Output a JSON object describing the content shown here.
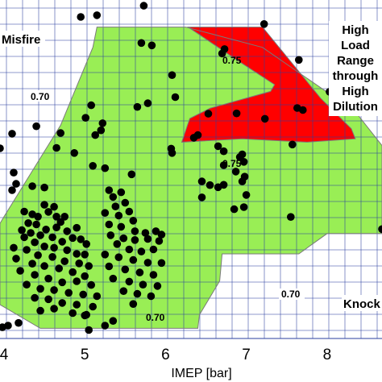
{
  "chart_data": {
    "type": "scatter",
    "xlabel": "IMEP [bar]",
    "ylabel": "",
    "xlim": [
      3.95,
      8.68
    ],
    "ylim": [
      0,
      1
    ],
    "x_ticks": [
      "4",
      "5",
      "6",
      "7",
      "8"
    ],
    "x_tick_values": [
      4,
      5,
      6,
      7,
      8
    ],
    "grid": true,
    "colors": {
      "grid": "#2b3f9f",
      "feasible_region": "#99ee55",
      "high_load_region": "#ff0000",
      "points": "#000000",
      "outline": "#7a7a7a"
    },
    "regions": {
      "feasible": {
        "name": "",
        "boundary": [
          [
            4.0,
            0.36
          ],
          [
            4.7,
            0.63
          ],
          [
            5.1,
            0.86
          ],
          [
            5.15,
            0.92
          ],
          [
            6.25,
            0.92
          ],
          [
            7.2,
            0.86
          ],
          [
            8.35,
            0.67
          ],
          [
            8.68,
            0.57
          ],
          [
            8.68,
            0.31
          ],
          [
            8.0,
            0.31
          ],
          [
            7.65,
            0.25
          ],
          [
            6.7,
            0.25
          ],
          [
            6.67,
            0.17
          ],
          [
            6.42,
            0.07
          ],
          [
            6.4,
            0.03
          ],
          [
            4.45,
            0.03
          ],
          [
            3.95,
            0.1
          ],
          [
            3.95,
            0.34
          ]
        ]
      },
      "high_load_dilution": {
        "name": "High Load Range through High Dilution",
        "boundary": [
          [
            6.28,
            0.92
          ],
          [
            7.2,
            0.92
          ],
          [
            7.92,
            0.71
          ],
          [
            8.3,
            0.62
          ],
          [
            8.35,
            0.59
          ],
          [
            7.75,
            0.58
          ],
          [
            6.95,
            0.59
          ],
          [
            6.2,
            0.58
          ],
          [
            6.3,
            0.65
          ],
          [
            6.55,
            0.68
          ],
          [
            7.3,
            0.73
          ],
          [
            7.35,
            0.75
          ],
          [
            6.9,
            0.82
          ]
        ]
      }
    },
    "region_labels": {
      "misfire": "Misfire",
      "high_load": [
        "High",
        "Load",
        "Range",
        "through",
        "High",
        "Dilution"
      ],
      "knock": "Knock"
    },
    "contours": [
      {
        "label": "0.70",
        "x": 4.43,
        "y": 0.728
      },
      {
        "label": "0.75",
        "x": 6.85,
        "y": 0.842
      },
      {
        "label": "0.75",
        "x": 6.85,
        "y": 0.564
      },
      {
        "label": "0.70",
        "x": 7.65,
        "y": 0.225
      },
      {
        "label": "0.70",
        "x": 5.9,
        "y": 0.082
      }
    ],
    "series": [
      {
        "points": [
          [
            5.15,
            0.955
          ],
          [
            5.73,
            0.983
          ],
          [
            7.22,
            0.929
          ],
          [
            4.95,
            0.95
          ],
          [
            5.7,
            0.873
          ],
          [
            5.83,
            0.866
          ],
          [
            6.7,
            0.842
          ],
          [
            6.73,
            0.855
          ],
          [
            7.65,
            0.823
          ],
          [
            6.08,
            0.778
          ],
          [
            5.08,
            0.689
          ],
          [
            6.12,
            0.713
          ],
          [
            5.78,
            0.695
          ],
          [
            5.65,
            0.684
          ],
          [
            8.03,
            0.729
          ],
          [
            7.63,
            0.681
          ],
          [
            7.7,
            0.675
          ],
          [
            6.88,
            0.665
          ],
          [
            7.23,
            0.649
          ],
          [
            6.53,
            0.664
          ],
          [
            6.35,
            0.593
          ],
          [
            6.4,
            0.601
          ],
          [
            7.57,
            0.573
          ],
          [
            4.4,
            0.627
          ],
          [
            5.01,
            0.652
          ],
          [
            5.22,
            0.636
          ],
          [
            5.2,
            0.615
          ],
          [
            5.13,
            0.601
          ],
          [
            3.95,
            0.562
          ],
          [
            4.1,
            0.605
          ],
          [
            4.7,
            0.607
          ],
          [
            4.87,
            0.548
          ],
          [
            4.65,
            0.563
          ],
          [
            5.1,
            0.51
          ],
          [
            5.25,
            0.503
          ],
          [
            5.58,
            0.485
          ],
          [
            6.08,
            0.548
          ],
          [
            6.07,
            0.561
          ],
          [
            6.65,
            0.568
          ],
          [
            6.72,
            0.553
          ],
          [
            6.95,
            0.544
          ],
          [
            6.92,
            0.536
          ],
          [
            6.97,
            0.522
          ],
          [
            6.72,
            0.512
          ],
          [
            6.87,
            0.493
          ],
          [
            6.72,
            0.454
          ],
          [
            6.65,
            0.447
          ],
          [
            6.98,
            0.478
          ],
          [
            6.95,
            0.464
          ],
          [
            6.45,
            0.464
          ],
          [
            6.55,
            0.453
          ],
          [
            6.45,
            0.417
          ],
          [
            7.0,
            0.424
          ],
          [
            6.85,
            0.382
          ],
          [
            6.97,
            0.388
          ],
          [
            7.55,
            0.359
          ],
          [
            8.68,
            0.323
          ],
          [
            4.12,
            0.49
          ],
          [
            4.15,
            0.457
          ],
          [
            4.1,
            0.438
          ],
          [
            4.35,
            0.45
          ],
          [
            4.5,
            0.446
          ],
          [
            4.55,
            0.374
          ],
          [
            4.62,
            0.389
          ],
          [
            4.5,
            0.395
          ],
          [
            4.42,
            0.36
          ],
          [
            4.25,
            0.375
          ],
          [
            4.35,
            0.367
          ],
          [
            4.65,
            0.36
          ],
          [
            4.7,
            0.344
          ],
          [
            4.75,
            0.36
          ],
          [
            4.3,
            0.341
          ],
          [
            4.4,
            0.337
          ],
          [
            4.52,
            0.322
          ],
          [
            4.65,
            0.328
          ],
          [
            4.78,
            0.317
          ],
          [
            4.9,
            0.327
          ],
          [
            4.22,
            0.32
          ],
          [
            4.33,
            0.312
          ],
          [
            4.45,
            0.305
          ],
          [
            4.6,
            0.299
          ],
          [
            4.72,
            0.286
          ],
          [
            4.85,
            0.297
          ],
          [
            4.95,
            0.293
          ],
          [
            5.02,
            0.279
          ],
          [
            4.25,
            0.299
          ],
          [
            4.38,
            0.284
          ],
          [
            4.5,
            0.272
          ],
          [
            4.62,
            0.268
          ],
          [
            4.78,
            0.261
          ],
          [
            4.9,
            0.25
          ],
          [
            5.0,
            0.248
          ],
          [
            4.12,
            0.268
          ],
          [
            4.28,
            0.262
          ],
          [
            4.42,
            0.246
          ],
          [
            4.6,
            0.241
          ],
          [
            4.75,
            0.228
          ],
          [
            4.93,
            0.222
          ],
          [
            5.05,
            0.214
          ],
          [
            4.15,
            0.236
          ],
          [
            4.35,
            0.221
          ],
          [
            4.5,
            0.214
          ],
          [
            4.68,
            0.207
          ],
          [
            4.85,
            0.196
          ],
          [
            5.0,
            0.184
          ],
          [
            4.2,
            0.2
          ],
          [
            4.38,
            0.188
          ],
          [
            4.55,
            0.177
          ],
          [
            4.72,
            0.166
          ],
          [
            4.9,
            0.169
          ],
          [
            5.08,
            0.158
          ],
          [
            4.28,
            0.159
          ],
          [
            4.45,
            0.147
          ],
          [
            4.62,
            0.143
          ],
          [
            4.8,
            0.135
          ],
          [
            4.98,
            0.13
          ],
          [
            5.15,
            0.125
          ],
          [
            4.38,
            0.12
          ],
          [
            4.55,
            0.116
          ],
          [
            4.72,
            0.105
          ],
          [
            4.9,
            0.1
          ],
          [
            5.1,
            0.094
          ],
          [
            4.45,
            0.082
          ],
          [
            4.62,
            0.088
          ],
          [
            4.85,
            0.075
          ],
          [
            5.02,
            0.07
          ],
          [
            5.3,
            0.438
          ],
          [
            5.35,
            0.418
          ],
          [
            5.45,
            0.432
          ],
          [
            5.5,
            0.401
          ],
          [
            5.38,
            0.39
          ],
          [
            5.25,
            0.371
          ],
          [
            5.42,
            0.363
          ],
          [
            5.55,
            0.375
          ],
          [
            5.6,
            0.348
          ],
          [
            5.3,
            0.337
          ],
          [
            5.45,
            0.33
          ],
          [
            5.62,
            0.317
          ],
          [
            5.75,
            0.312
          ],
          [
            5.88,
            0.317
          ],
          [
            5.95,
            0.307
          ],
          [
            5.32,
            0.305
          ],
          [
            5.48,
            0.296
          ],
          [
            5.62,
            0.291
          ],
          [
            5.78,
            0.294
          ],
          [
            5.92,
            0.288
          ],
          [
            5.4,
            0.279
          ],
          [
            5.55,
            0.263
          ],
          [
            5.7,
            0.257
          ],
          [
            5.85,
            0.263
          ],
          [
            5.25,
            0.248
          ],
          [
            5.42,
            0.24
          ],
          [
            5.6,
            0.232
          ],
          [
            5.78,
            0.224
          ],
          [
            5.95,
            0.223
          ],
          [
            5.3,
            0.213
          ],
          [
            5.5,
            0.204
          ],
          [
            5.68,
            0.195
          ],
          [
            5.85,
            0.188
          ],
          [
            5.35,
            0.177
          ],
          [
            5.55,
            0.168
          ],
          [
            5.72,
            0.159
          ],
          [
            5.9,
            0.155
          ],
          [
            5.48,
            0.14
          ],
          [
            5.65,
            0.132
          ],
          [
            5.82,
            0.125
          ],
          [
            5.6,
            0.102
          ],
          [
            3.98,
            0.033
          ],
          [
            4.05,
            0.038
          ],
          [
            4.18,
            0.046
          ],
          [
            5.0,
            0.068
          ],
          [
            5.05,
            0.025
          ],
          [
            5.25,
            0.038
          ],
          [
            5.35,
            0.052
          ]
        ]
      }
    ]
  }
}
